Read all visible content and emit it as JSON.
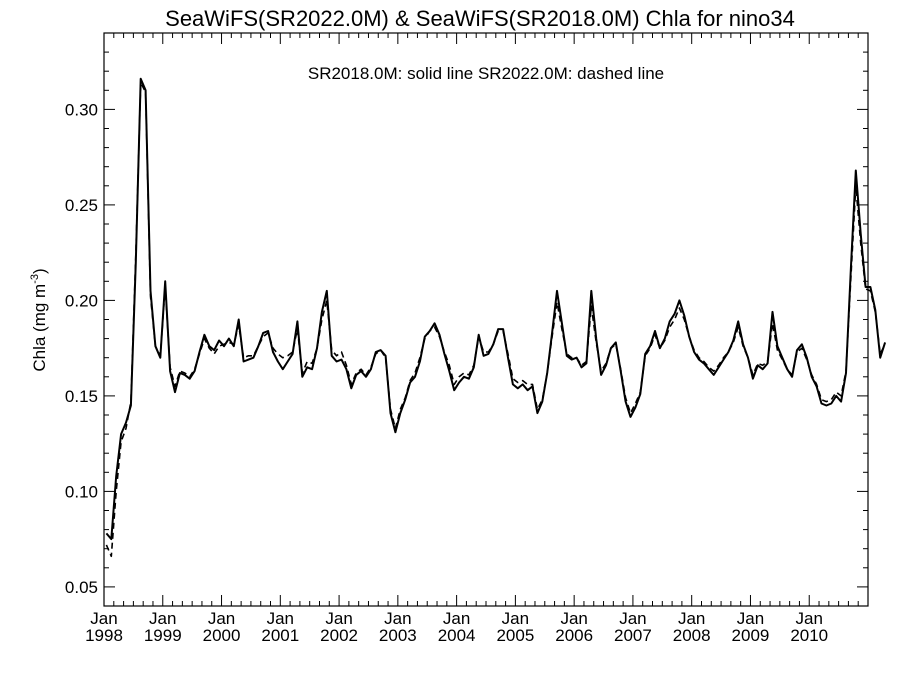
{
  "chart_data": {
    "type": "line",
    "title": "SeaWiFS(SR2022.0M) & SeaWiFS(SR2018.0M)  Chla for nino34",
    "annotation": "SR2018.0M: solid line   SR2022.0M: dashed line",
    "ylabel": "Chla (mg m",
    "ylabel_superscript": "-3",
    "ylabel_close": ")",
    "ylim": [
      0.04,
      0.34
    ],
    "xlim": [
      "1998-01",
      "2010-12"
    ],
    "yticks": [
      "0.05",
      "0.10",
      "0.15",
      "0.20",
      "0.25",
      "0.30"
    ],
    "xticks": [
      {
        "month": "Jan",
        "year": "1998"
      },
      {
        "month": "Jan",
        "year": "1999"
      },
      {
        "month": "Jan",
        "year": "2000"
      },
      {
        "month": "Jan",
        "year": "2001"
      },
      {
        "month": "Jan",
        "year": "2002"
      },
      {
        "month": "Jan",
        "year": "2003"
      },
      {
        "month": "Jan",
        "year": "2004"
      },
      {
        "month": "Jan",
        "year": "2005"
      },
      {
        "month": "Jan",
        "year": "2006"
      },
      {
        "month": "Jan",
        "year": "2007"
      },
      {
        "month": "Jan",
        "year": "2008"
      },
      {
        "month": "Jan",
        "year": "2009"
      },
      {
        "month": "Jan",
        "year": "2010"
      }
    ],
    "grid": false,
    "line_color": "#000000",
    "series": [
      {
        "style": "solid",
        "start": "1998-01",
        "values": [
          0.078,
          0.075,
          0.108,
          0.13,
          0.136,
          0.145,
          0.22,
          0.316,
          0.31,
          0.205,
          0.176,
          0.17,
          0.21,
          0.163,
          0.152,
          0.162,
          0.161,
          0.159,
          0.163,
          0.173,
          0.182,
          0.176,
          0.174,
          0.179,
          0.176,
          0.18,
          0.176,
          0.19,
          0.168,
          0.169,
          0.17,
          0.176,
          0.183,
          0.184,
          0.173,
          0.168,
          0.164,
          0.168,
          0.172,
          0.189,
          0.16,
          0.165,
          0.164,
          0.175,
          0.194,
          0.205,
          0.171,
          0.168,
          0.169,
          0.164,
          0.154,
          0.161,
          0.163,
          0.16,
          0.164,
          0.173,
          0.174,
          0.171,
          0.141,
          0.131,
          0.141,
          0.148,
          0.157,
          0.16,
          0.168,
          0.181,
          0.184,
          0.188,
          0.182,
          0.172,
          0.163,
          0.153,
          0.157,
          0.16,
          0.159,
          0.165,
          0.182,
          0.171,
          0.172,
          0.177,
          0.185,
          0.185,
          0.17,
          0.156,
          0.154,
          0.156,
          0.153,
          0.155,
          0.141,
          0.147,
          0.162,
          0.183,
          0.205,
          0.188,
          0.171,
          0.169,
          0.17,
          0.165,
          0.167,
          0.205,
          0.18,
          0.161,
          0.166,
          0.175,
          0.178,
          0.163,
          0.147,
          0.139,
          0.144,
          0.151,
          0.172,
          0.176,
          0.184,
          0.175,
          0.18,
          0.189,
          0.193,
          0.2,
          0.192,
          0.181,
          0.173,
          0.169,
          0.167,
          0.164,
          0.161,
          0.165,
          0.169,
          0.173,
          0.179,
          0.189,
          0.177,
          0.17,
          0.159,
          0.166,
          0.164,
          0.167,
          0.194,
          0.176,
          0.17,
          0.164,
          0.16,
          0.174,
          0.177,
          0.17,
          0.16,
          0.155,
          0.146,
          0.145,
          0.146,
          0.15,
          0.147,
          0.162,
          0.217,
          0.268,
          0.235,
          0.207,
          0.207,
          0.195,
          0.17,
          0.178
        ]
      },
      {
        "style": "dashed",
        "start": "1998-01",
        "values": [
          0.072,
          0.066,
          0.1,
          0.126,
          0.133,
          0.147,
          0.224,
          0.314,
          0.309,
          0.202,
          0.176,
          0.171,
          0.207,
          0.165,
          0.155,
          0.163,
          0.162,
          0.16,
          0.164,
          0.172,
          0.18,
          0.175,
          0.172,
          0.176,
          0.177,
          0.178,
          0.177,
          0.187,
          0.17,
          0.171,
          0.171,
          0.176,
          0.181,
          0.183,
          0.175,
          0.172,
          0.17,
          0.171,
          0.173,
          0.185,
          0.162,
          0.168,
          0.167,
          0.175,
          0.19,
          0.2,
          0.174,
          0.171,
          0.173,
          0.166,
          0.156,
          0.162,
          0.164,
          0.161,
          0.165,
          0.172,
          0.174,
          0.17,
          0.143,
          0.133,
          0.143,
          0.149,
          0.158,
          0.162,
          0.17,
          0.18,
          0.184,
          0.186,
          0.181,
          0.173,
          0.166,
          0.156,
          0.16,
          0.162,
          0.161,
          0.166,
          0.181,
          0.173,
          0.173,
          0.177,
          0.184,
          0.184,
          0.172,
          0.159,
          0.157,
          0.158,
          0.156,
          0.156,
          0.143,
          0.148,
          0.162,
          0.181,
          0.199,
          0.185,
          0.172,
          0.17,
          0.17,
          0.166,
          0.168,
          0.197,
          0.178,
          0.163,
          0.167,
          0.175,
          0.177,
          0.164,
          0.149,
          0.141,
          0.146,
          0.152,
          0.171,
          0.175,
          0.182,
          0.175,
          0.179,
          0.186,
          0.19,
          0.196,
          0.19,
          0.181,
          0.174,
          0.17,
          0.168,
          0.165,
          0.163,
          0.166,
          0.17,
          0.173,
          0.178,
          0.186,
          0.176,
          0.17,
          0.161,
          0.167,
          0.166,
          0.168,
          0.188,
          0.174,
          0.169,
          0.164,
          0.161,
          0.173,
          0.175,
          0.169,
          0.161,
          0.156,
          0.148,
          0.147,
          0.148,
          0.152,
          0.15,
          0.163,
          0.212,
          0.26,
          0.23,
          0.206,
          0.205,
          0.194,
          0.172,
          0.177
        ]
      }
    ]
  }
}
